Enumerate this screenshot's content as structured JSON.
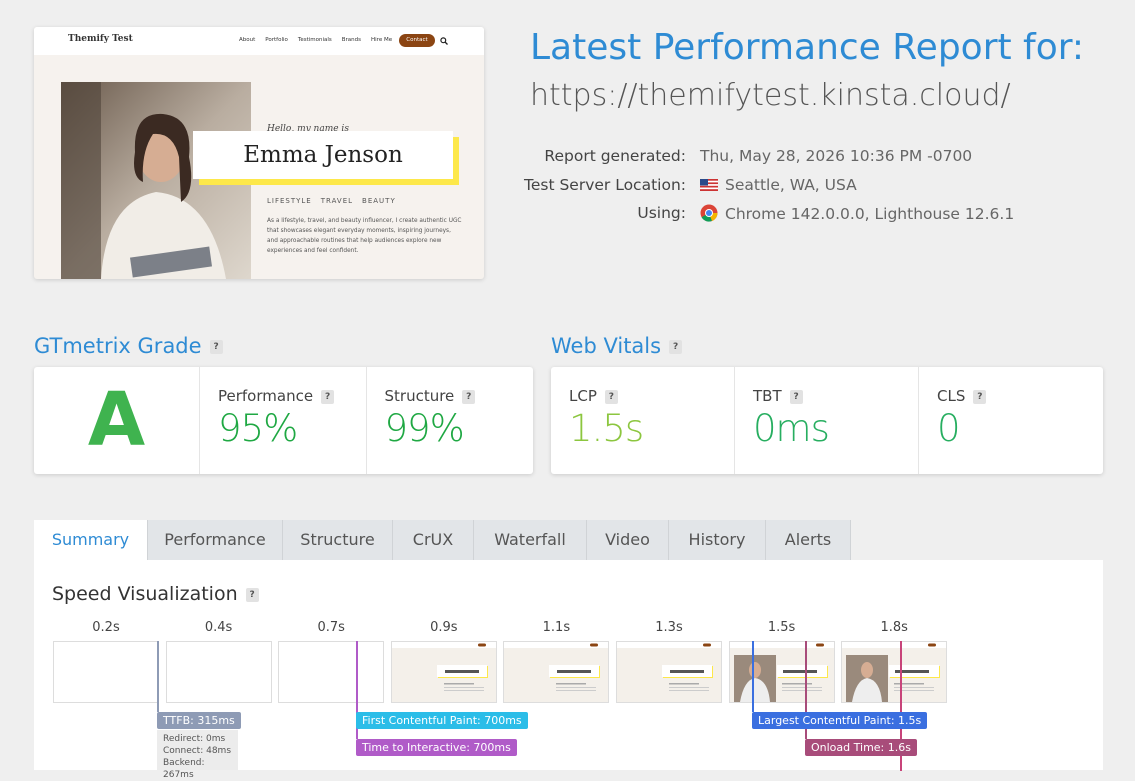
{
  "preview": {
    "site_name": "Themify Test",
    "nav": [
      "About",
      "Portfolio",
      "Testimonials",
      "Brands",
      "Hire Me"
    ],
    "contact": "Contact",
    "greeting": "Hello, my name is",
    "name": "Emma Jenson",
    "tags": [
      "LIFESTYLE",
      "TRAVEL",
      "BEAUTY"
    ],
    "bio": "As a lifestyle, travel, and beauty influencer, I create authentic UGC that showcases elegant everyday moments, inspiring journeys, and approachable routines that help audiences explore new experiences and feel confident."
  },
  "report": {
    "title": "Latest Performance Report for:",
    "url": "https://themifytest.kinsta.cloud/",
    "details": [
      {
        "label": "Report generated:",
        "value": "Thu, May 28, 2026 10:36 PM -0700"
      },
      {
        "label": "Test Server Location:",
        "value": "Seattle, WA, USA"
      },
      {
        "label": "Using:",
        "value": "Chrome 142.0.0.0, Lighthouse 12.6.1"
      }
    ]
  },
  "help_icon": "?",
  "grade": {
    "title": "GTmetrix Grade",
    "grade": "A",
    "metrics": [
      {
        "label": "Performance",
        "value": "95%"
      },
      {
        "label": "Structure",
        "value": "99%"
      }
    ]
  },
  "vitals": {
    "title": "Web Vitals",
    "metrics": [
      {
        "label": "LCP",
        "value": "1.5s"
      },
      {
        "label": "TBT",
        "value": "0ms"
      },
      {
        "label": "CLS",
        "value": "0"
      }
    ]
  },
  "tabs": [
    "Summary",
    "Performance",
    "Structure",
    "CrUX",
    "Waterfall",
    "Video",
    "History",
    "Alerts"
  ],
  "speed": {
    "title": "Speed Visualization",
    "frames": [
      "0.2s",
      "0.4s",
      "0.7s",
      "0.9s",
      "1.1s",
      "1.3s",
      "1.5s",
      "1.8s"
    ],
    "markers": [
      "TTFB: 315ms",
      "First Contentful Paint: 700ms",
      "Time to Interactive: 700ms",
      "Largest Contentful Paint: 1.5s",
      "Onload Time: 1.6s"
    ],
    "ttfb_details": [
      "Redirect: 0ms",
      "Connect: 48ms",
      "Backend: 267ms"
    ]
  }
}
